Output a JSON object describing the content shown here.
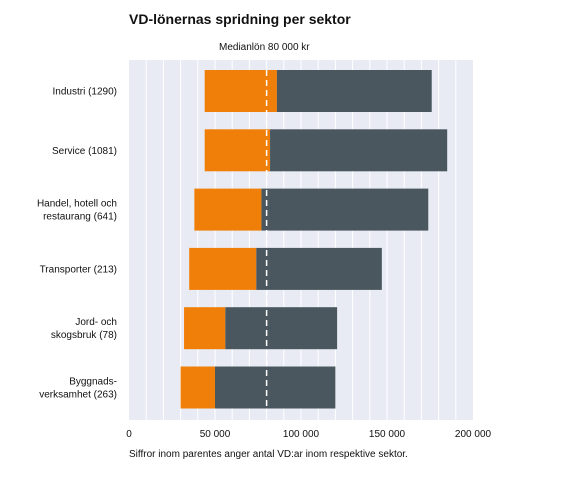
{
  "chart_data": {
    "type": "bar",
    "title": "VD-lönernas spridning per sektor",
    "median_label": "Medianlön 80 000 kr",
    "median_value": 80000,
    "footnote": "Siffror inom parentes anger antal VD:ar inom respektive sektor.",
    "xlim": [
      0,
      200000
    ],
    "xticks": [
      0,
      50000,
      100000,
      150000,
      200000
    ],
    "xtick_labels": [
      "0",
      "50 000",
      "100 000",
      "150 000",
      "200 000"
    ],
    "grid": true,
    "categories": [
      [
        "Industri (1290)"
      ],
      [
        "Service (1081)"
      ],
      [
        "Handel, hotell och",
        "restaurang (641)"
      ],
      [
        "Transporter (213)"
      ],
      [
        "Jord- och",
        "skogsbruk (78)"
      ],
      [
        "Byggnads-",
        "verksamhet (263)"
      ]
    ],
    "series": [
      {
        "color": "#f07f09",
        "values": [
          [
            44000,
            86000
          ],
          [
            44000,
            82000
          ],
          [
            38000,
            77000
          ],
          [
            35000,
            74000
          ],
          [
            32000,
            56000
          ],
          [
            30000,
            50000
          ]
        ]
      },
      {
        "color": "#4a575e",
        "values": [
          [
            86000,
            176000
          ],
          [
            82000,
            185000
          ],
          [
            77000,
            174000
          ],
          [
            74000,
            147000
          ],
          [
            56000,
            121000
          ],
          [
            50000,
            120000
          ]
        ]
      }
    ],
    "colors": {
      "plot_background": "#e9ebf4",
      "grid": "#ffffff",
      "median_line": "#ffffff"
    }
  }
}
